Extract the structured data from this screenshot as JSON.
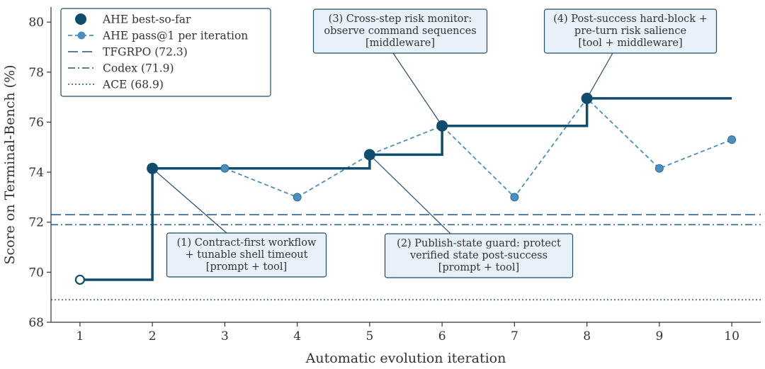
{
  "chart_data": {
    "type": "line",
    "xlabel": "Automatic evolution iteration",
    "ylabel": "Score on Terminal-Bench (%)",
    "xlim": [
      0.6,
      10.4
    ],
    "ylim": [
      68,
      80.6
    ],
    "x_ticks": [
      1,
      2,
      3,
      4,
      5,
      6,
      7,
      8,
      9,
      10
    ],
    "y_ticks": [
      68,
      70,
      72,
      74,
      76,
      78,
      80
    ],
    "grid": false,
    "legend_position": "top-left",
    "series": [
      {
        "name": "AHE best-so-far",
        "style": "step",
        "color": "#0f4c6e",
        "x": [
          1,
          2,
          3,
          4,
          5,
          6,
          7,
          8,
          9,
          10
        ],
        "values": [
          69.7,
          74.15,
          74.15,
          74.15,
          74.7,
          75.85,
          75.85,
          76.95,
          76.95,
          76.95
        ],
        "marked_points": [
          2,
          5,
          6,
          8
        ],
        "open_marker_point": 1
      },
      {
        "name": "AHE pass@1 per iteration",
        "style": "dashed",
        "color": "#4a8fbf",
        "x": [
          3,
          4,
          5,
          6,
          7,
          8,
          9,
          10
        ],
        "values": [
          74.15,
          73.0,
          74.7,
          75.85,
          73.0,
          76.95,
          74.15,
          75.3
        ]
      }
    ],
    "reference_lines": [
      {
        "name": "TFGRPO (72.3)",
        "value": 72.3,
        "style": "dashed",
        "color": "#3b6f96"
      },
      {
        "name": "Codex (71.9)",
        "value": 71.9,
        "style": "dashdot",
        "color": "#3b6f96"
      },
      {
        "name": "ACE (68.9)",
        "value": 68.9,
        "style": "dotted",
        "color": "#3b6f96"
      }
    ],
    "annotations": [
      {
        "id": "ann1",
        "lines": [
          "(1) Contract-first workflow",
          "+ tunable shell timeout",
          "[prompt + tool]"
        ],
        "x": 2,
        "y": 74.15
      },
      {
        "id": "ann2",
        "lines": [
          "(2) Publish-state guard: protect",
          "verified state post-success",
          "[prompt + tool]"
        ],
        "x": 5,
        "y": 74.7
      },
      {
        "id": "ann3",
        "lines": [
          "(3) Cross-step risk monitor:",
          "observe command sequences",
          "[middleware]"
        ],
        "x": 6,
        "y": 75.85
      },
      {
        "id": "ann4",
        "lines": [
          "(4) Post-success hard-block +",
          "pre-turn risk salience",
          "[tool + middleware]"
        ],
        "x": 8,
        "y": 76.95
      }
    ],
    "colors": {
      "best": "#0f4c6e",
      "pass": "#4a8fbf",
      "ref": "#3b6f96",
      "box_fill": "#e8f1fa",
      "box_edge": "#1f4e6b"
    }
  }
}
